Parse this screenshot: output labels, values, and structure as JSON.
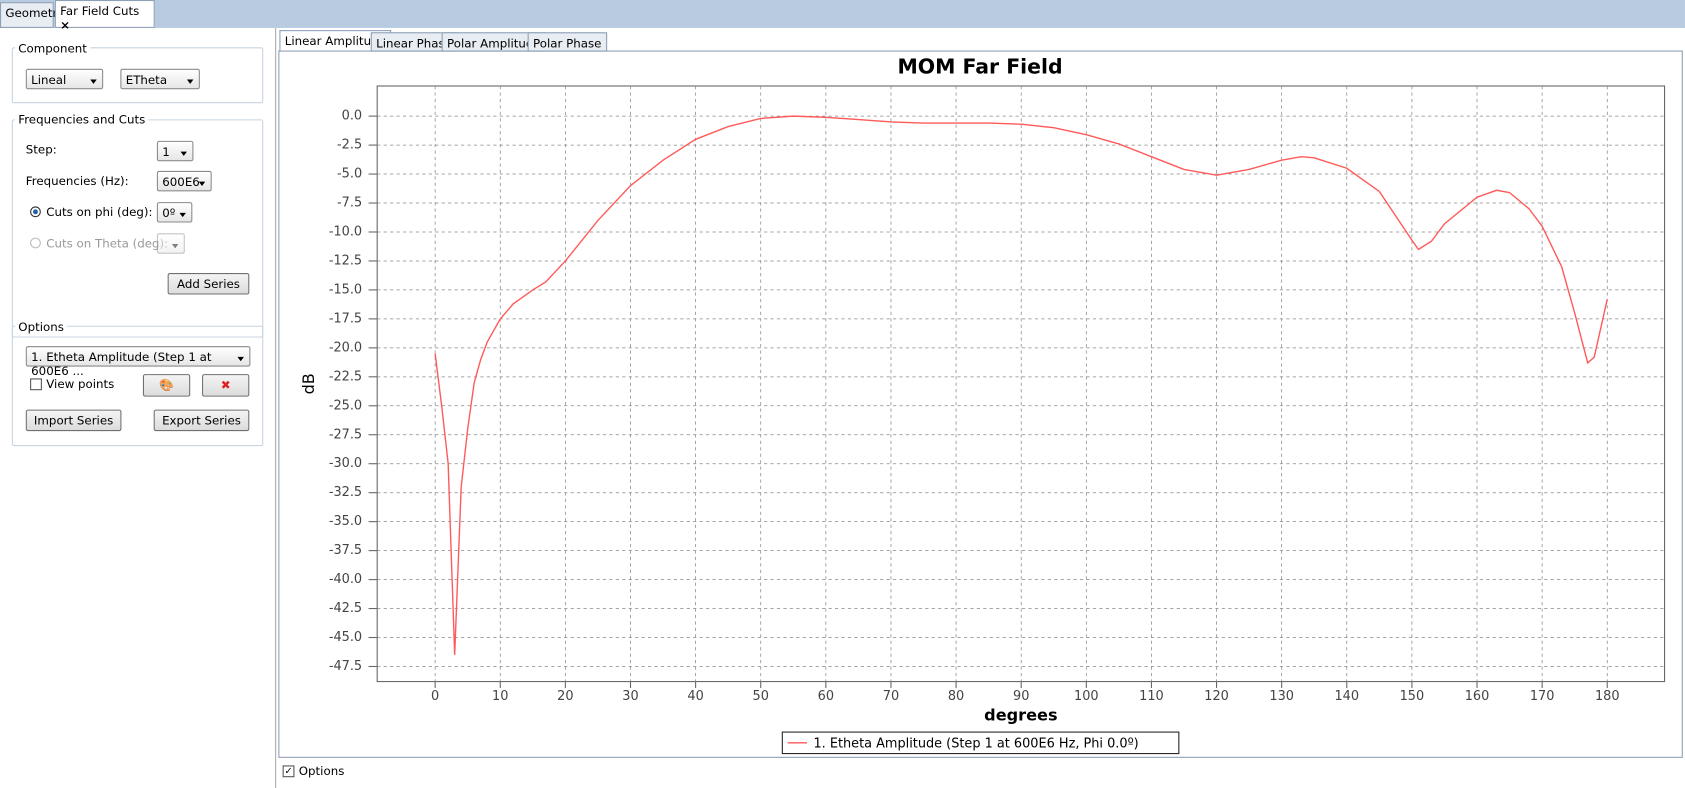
{
  "top_tabs": [
    "Geometry",
    "Far Field Cuts"
  ],
  "left_panel": {
    "component": {
      "title": "Component",
      "type": "Lineal",
      "field": "ETheta"
    },
    "frequencies": {
      "title": "Frequencies and Cuts",
      "step_label": "Step:",
      "step": "1",
      "freq_label": "Frequencies (Hz):",
      "freq": "600E6",
      "phi_label": "Cuts on phi (deg):",
      "phi": "0º",
      "theta_label": "Cuts on Theta (deg):",
      "add": "Add Series"
    },
    "options": {
      "title": "Options",
      "series": "1. Etheta Amplitude (Step 1 at 600E6 ...",
      "view_points": "View points",
      "import": "Import Series",
      "export": "Export Series"
    }
  },
  "chart_tabs": [
    "Linear Amplitude",
    "Linear Phase",
    "Polar Amplitude",
    "Polar Phase"
  ],
  "bottom_option": "Options",
  "chart_data": {
    "type": "line",
    "title": "MOM Far Field",
    "x_label": "degrees",
    "y_label": "dB",
    "x": [
      0,
      1,
      2,
      3,
      4,
      5,
      6,
      7,
      8,
      10,
      12,
      15,
      17,
      20,
      25,
      30,
      35,
      40,
      45,
      50,
      55,
      60,
      65,
      70,
      75,
      80,
      85,
      90,
      95,
      100,
      105,
      110,
      115,
      120,
      125,
      130,
      133,
      135,
      140,
      145,
      150,
      151,
      153,
      155,
      160,
      163,
      165,
      168,
      170,
      173,
      175,
      177,
      178,
      180
    ],
    "series": [
      {
        "name": "1. Etheta Amplitude (Step 1 at 600E6 Hz, Phi 0.0º)",
        "color": "#ff5a5a",
        "values": [
          -20.5,
          -25,
          -30,
          -46.5,
          -32,
          -27,
          -23,
          -21,
          -19.5,
          -17.5,
          -16.2,
          -15,
          -14.3,
          -12.5,
          -9,
          -6,
          -3.8,
          -2,
          -0.9,
          -0.2,
          0,
          -0.1,
          -0.3,
          -0.5,
          -0.6,
          -0.6,
          -0.6,
          -0.7,
          -1.0,
          -1.6,
          -2.4,
          -3.5,
          -4.6,
          -5.1,
          -4.6,
          -3.8,
          -3.5,
          -3.6,
          -4.5,
          -6.5,
          -10.7,
          -11.5,
          -10.8,
          -9.3,
          -7,
          -6.4,
          -6.6,
          -8,
          -9.5,
          -13,
          -17,
          -21.3,
          -20.8,
          -15.8
        ]
      }
    ],
    "xlim": [
      -8.9,
      188.8
    ],
    "ylim": [
      -48.8,
      2.6
    ],
    "xticks": [
      0,
      10,
      20,
      30,
      40,
      50,
      60,
      70,
      80,
      90,
      100,
      110,
      120,
      130,
      140,
      150,
      160,
      170,
      180
    ],
    "yticks": [
      {
        "value": 0,
        "label": "0.0"
      },
      -2.5,
      {
        "value": -5,
        "label": "-5.0"
      },
      -7.5,
      {
        "value": -10,
        "label": "-10.0"
      },
      -12.5,
      {
        "value": -15,
        "label": "-15.0"
      },
      -17.5,
      {
        "value": -20,
        "label": "-20.0"
      },
      -22.5,
      {
        "value": -25,
        "label": "-25.0"
      },
      -27.5,
      {
        "value": -30,
        "label": "-30.0"
      },
      -32.5,
      {
        "value": -35,
        "label": "-35.0"
      },
      -37.5,
      {
        "value": -40,
        "label": "-40.0"
      },
      -42.5,
      {
        "value": -45,
        "label": "-45.0"
      },
      -47.5
    ],
    "grid": true
  }
}
